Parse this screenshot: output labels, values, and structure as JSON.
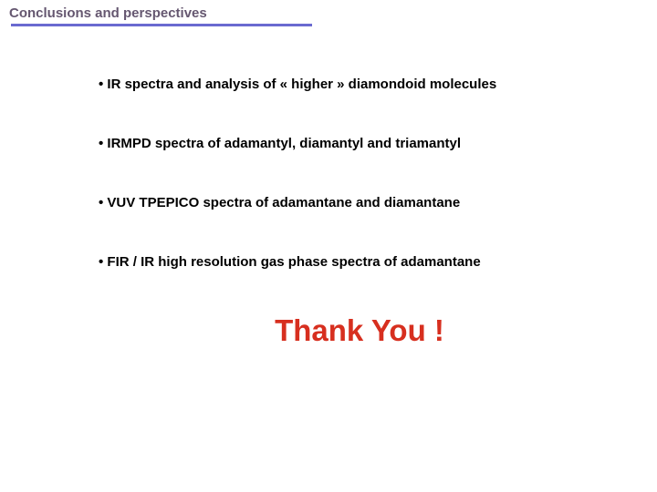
{
  "title": "Conclusions and perspectives",
  "underline_color": "#6a6ad0",
  "title_color": "#655770",
  "bullets": [
    "• IR spectra and analysis of « higher » diamondoid molecules",
    "• IRMPD spectra of adamantyl, diamantyl and triamantyl",
    "• VUV TPEPICO spectra of adamantane and diamantane",
    "•  FIR / IR high resolution gas phase spectra of adamantane"
  ],
  "thanks": "Thank You !",
  "thanks_color": "#d72f1f",
  "background_color": "#ffffff",
  "title_fontsize": 15,
  "bullet_fontsize": 15,
  "thanks_fontsize": 33
}
